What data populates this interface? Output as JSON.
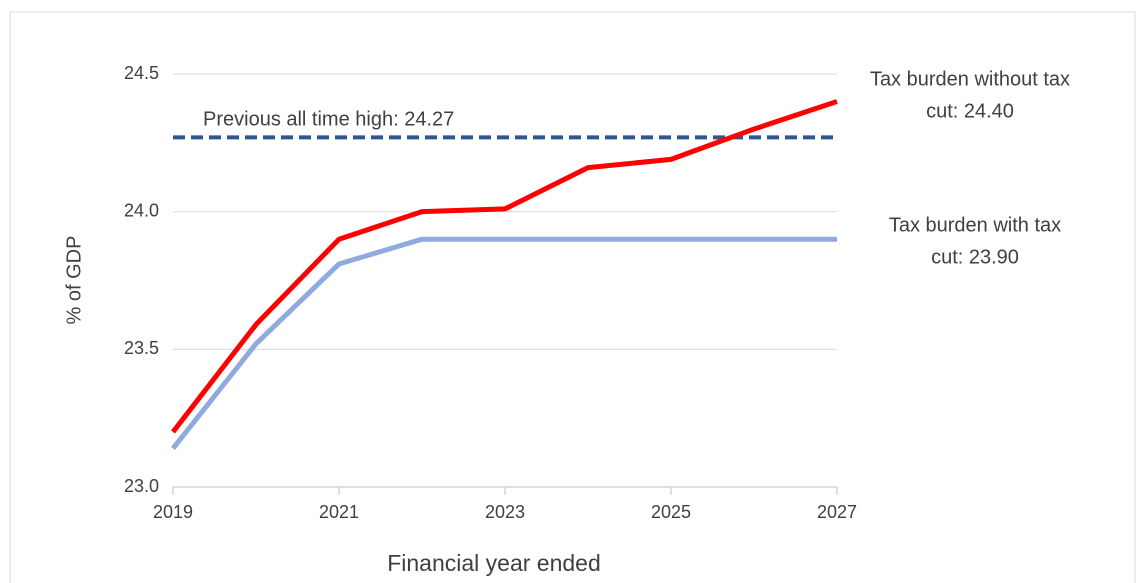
{
  "chart_data": {
    "type": "line",
    "x": [
      2019,
      2020,
      2021,
      2022,
      2023,
      2024,
      2025,
      2026,
      2027
    ],
    "series": [
      {
        "name": "Tax burden without tax cut",
        "color": "#ff0000",
        "values": [
          23.2,
          23.59,
          23.9,
          24.0,
          24.01,
          24.16,
          24.19,
          24.3,
          24.4
        ]
      },
      {
        "name": "Tax burden with tax cut",
        "color": "#8faadc",
        "values": [
          23.14,
          23.52,
          23.81,
          23.9,
          23.9,
          23.9,
          23.9,
          23.9,
          23.9
        ]
      }
    ],
    "reference_lines": [
      {
        "value": 24.27,
        "color": "#2f5597",
        "style": "dashed"
      }
    ],
    "annotations": [
      {
        "lines": [
          "Previous all time high: 24.27"
        ]
      },
      {
        "lines": [
          "Tax burden without tax",
          "cut: 24.40"
        ]
      },
      {
        "lines": [
          "Tax burden with tax",
          "cut: 23.90"
        ]
      }
    ],
    "xlabel": "Financial year ended",
    "ylabel": "% of GDP",
    "xlim": [
      2019,
      2027
    ],
    "xticks": [
      2019,
      2021,
      2023,
      2025,
      2027
    ],
    "ylim": [
      23,
      24.5
    ],
    "yticks": [
      {
        "value": 23,
        "label": "23.0"
      },
      {
        "value": 23.5,
        "label": "23.5"
      },
      {
        "value": 24,
        "label": "24.0"
      },
      {
        "value": 24.5,
        "label": "24.5"
      }
    ],
    "grid": true
  }
}
